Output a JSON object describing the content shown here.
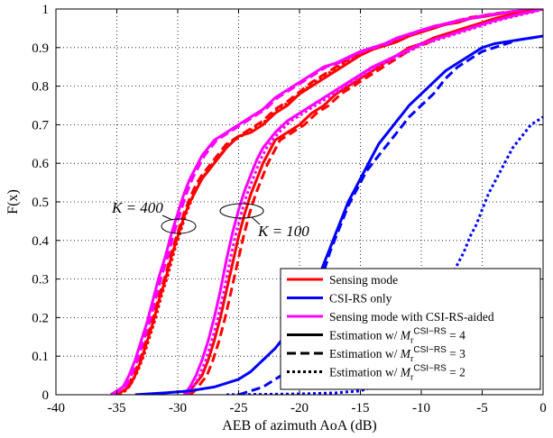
{
  "chart_data": {
    "type": "line",
    "title": "",
    "xlabel": "AEB of  azimuth AoA (dB)",
    "ylabel": "F(x)",
    "xlim": [
      -40,
      0
    ],
    "ylim": [
      0,
      1
    ],
    "grid": true,
    "legend_position": "bottom-right",
    "x_ticks": [
      "-40",
      "-35",
      "-30",
      "-25",
      "-20",
      "-15",
      "-10",
      "-5",
      "0"
    ],
    "y_ticks": [
      "0",
      "0.1",
      "0.2",
      "0.3",
      "0.4",
      "0.5",
      "0.6",
      "0.7",
      "0.8",
      "0.9",
      "1"
    ],
    "legend": [
      {
        "label": "Sensing mode",
        "color": "#ff0000",
        "style": "solid"
      },
      {
        "label": "CSI-RS only",
        "color": "#0000ff",
        "style": "solid"
      },
      {
        "label": "Sensing mode with CSI-RS-aided",
        "color": "#ff00ff",
        "style": "solid"
      },
      {
        "label": "Estimation w/ ",
        "math": "M_r^{CSI-RS} = 4",
        "sup": "CSI−RS",
        "rhs": " = 4",
        "color": "#000000",
        "style": "solid"
      },
      {
        "label": "Estimation w/ ",
        "math": "M_r^{CSI-RS} = 3",
        "sup": "CSI−RS",
        "rhs": " = 3",
        "color": "#000000",
        "style": "dashed"
      },
      {
        "label": "Estimation w/ ",
        "math": "M_r^{CSI-RS} = 2",
        "sup": "CSI−RS",
        "rhs": " = 2",
        "color": "#000000",
        "style": "dotted"
      }
    ],
    "annotations": [
      {
        "text": "K = 400",
        "near_x": -29.5,
        "near_y": 0.44
      },
      {
        "text": "K = 100",
        "near_x": -24,
        "near_y": 0.48
      }
    ],
    "series": [
      {
        "name": "Sensing mode, K=400, M=4",
        "color": "#ff0000",
        "style": "solid",
        "x": [
          -35.2,
          -34.5,
          -34,
          -33.5,
          -33,
          -32.5,
          -32,
          -31.5,
          -31,
          -30.5,
          -30,
          -29.5,
          -29,
          -28.5,
          -28,
          -27.5,
          -27,
          -26,
          -25,
          -24,
          -23,
          -22,
          -21,
          -20,
          -19,
          -18,
          -17,
          -16,
          -15,
          -14,
          -13,
          -12,
          -11,
          -10,
          -9,
          -8,
          -7,
          -6,
          -5,
          -4,
          -3,
          -2,
          -1,
          0
        ],
        "y": [
          0,
          0.01,
          0.02,
          0.05,
          0.09,
          0.14,
          0.19,
          0.25,
          0.3,
          0.36,
          0.41,
          0.46,
          0.5,
          0.53,
          0.56,
          0.58,
          0.6,
          0.64,
          0.67,
          0.68,
          0.7,
          0.73,
          0.75,
          0.78,
          0.8,
          0.82,
          0.84,
          0.86,
          0.88,
          0.895,
          0.905,
          0.915,
          0.93,
          0.94,
          0.95,
          0.96,
          0.965,
          0.975,
          0.98,
          0.985,
          0.99,
          0.993,
          0.997,
          1.0
        ]
      },
      {
        "name": "Sensing mode, K=400, M=3",
        "color": "#ff0000",
        "style": "dashed",
        "x": [
          -35,
          -34.5,
          -34,
          -33.5,
          -33,
          -32.5,
          -32,
          -31.5,
          -31,
          -30.5,
          -30,
          -29.5,
          -29,
          -28.5,
          -28,
          -27.5,
          -27,
          -26,
          -25,
          -24,
          -23,
          -22,
          -21,
          -20,
          -19,
          -18,
          -17,
          -16,
          -15,
          -14,
          -13,
          -12,
          -11,
          -10,
          -9,
          -8,
          -7,
          -6,
          -5,
          -4,
          -3,
          -2,
          -1,
          0
        ],
        "y": [
          0,
          0.01,
          0.03,
          0.06,
          0.1,
          0.15,
          0.2,
          0.26,
          0.31,
          0.37,
          0.42,
          0.47,
          0.51,
          0.545,
          0.57,
          0.59,
          0.61,
          0.65,
          0.67,
          0.69,
          0.71,
          0.74,
          0.76,
          0.785,
          0.81,
          0.83,
          0.85,
          0.87,
          0.885,
          0.9,
          0.91,
          0.92,
          0.935,
          0.945,
          0.955,
          0.962,
          0.97,
          0.978,
          0.983,
          0.988,
          0.992,
          0.995,
          0.998,
          1.0
        ]
      },
      {
        "name": "Sensing mode, K=400, M=2",
        "color": "#ff0000",
        "style": "dotted",
        "x": [
          -34.8,
          -34.3,
          -33.8,
          -33.3,
          -32.8,
          -32.3,
          -31.8,
          -31.3,
          -30.8,
          -30.3,
          -29.8,
          -29.3,
          -28.8,
          -28.3,
          -27.8,
          -27.3,
          -26.8,
          -25.8,
          -24.8,
          -23.8,
          -22.8,
          -21.8,
          -20.8,
          -19.8,
          -18.8,
          -17.8,
          -16.8,
          -15.8,
          -14.8,
          -13.8,
          -12.8,
          -11.8,
          -10.8,
          -9.8,
          -8.8,
          -7.8,
          -6.8,
          -5.8,
          -4.8,
          -3.8,
          -2.8,
          -1.8,
          -0.8,
          0
        ],
        "y": [
          0,
          0.01,
          0.03,
          0.06,
          0.1,
          0.15,
          0.2,
          0.26,
          0.31,
          0.37,
          0.42,
          0.47,
          0.51,
          0.545,
          0.57,
          0.59,
          0.61,
          0.65,
          0.67,
          0.69,
          0.71,
          0.74,
          0.76,
          0.785,
          0.81,
          0.83,
          0.85,
          0.87,
          0.885,
          0.9,
          0.91,
          0.92,
          0.935,
          0.945,
          0.955,
          0.962,
          0.97,
          0.978,
          0.983,
          0.988,
          0.992,
          0.995,
          0.998,
          1.0
        ]
      },
      {
        "name": "Sensing with CSI-RS-aided, K=400, M=4",
        "color": "#ff00ff",
        "style": "solid",
        "x": [
          -35.5,
          -35,
          -34.5,
          -34,
          -33.5,
          -33,
          -32.5,
          -32,
          -31.5,
          -31,
          -30.5,
          -30,
          -29.5,
          -29,
          -28.5,
          -28,
          -27.5,
          -27,
          -26,
          -25,
          -24,
          -23,
          -22,
          -21,
          -20,
          -19,
          -18,
          -17,
          -16,
          -15,
          -14,
          -13,
          -12,
          -11,
          -10,
          -9,
          -8,
          -7,
          -6,
          -5,
          -4,
          -3,
          -2,
          -1,
          0
        ],
        "y": [
          0,
          0.01,
          0.02,
          0.05,
          0.09,
          0.14,
          0.19,
          0.25,
          0.31,
          0.36,
          0.42,
          0.47,
          0.52,
          0.56,
          0.59,
          0.62,
          0.64,
          0.66,
          0.68,
          0.7,
          0.72,
          0.74,
          0.77,
          0.79,
          0.81,
          0.83,
          0.85,
          0.86,
          0.875,
          0.89,
          0.9,
          0.91,
          0.925,
          0.935,
          0.945,
          0.955,
          0.962,
          0.97,
          0.976,
          0.982,
          0.987,
          0.991,
          0.995,
          0.998,
          1.0
        ]
      },
      {
        "name": "Sensing with CSI-RS-aided, K=400, M=3",
        "color": "#ff00ff",
        "style": "dashed",
        "x": [
          -35.3,
          -34.8,
          -34.3,
          -33.8,
          -33.3,
          -32.8,
          -32.3,
          -31.8,
          -31.3,
          -30.8,
          -30.3,
          -29.8,
          -29.3,
          -28.8,
          -28.3,
          -27.8,
          -27.3,
          -26.8,
          -25.8,
          -24.8,
          -23.8,
          -22.8,
          -21.8,
          -20.8,
          -19.8,
          -18.8,
          -17.8,
          -16.8,
          -15.8,
          -14.8,
          -13.8,
          -12.8,
          -11.8,
          -10.8,
          -9.8,
          -8.8,
          -7.8,
          -6.8,
          -5.8,
          -4.8,
          -3.8,
          -2.8,
          -1.8,
          -0.8,
          0
        ],
        "y": [
          0,
          0.01,
          0.02,
          0.05,
          0.09,
          0.14,
          0.19,
          0.25,
          0.31,
          0.36,
          0.42,
          0.47,
          0.52,
          0.56,
          0.59,
          0.62,
          0.64,
          0.66,
          0.68,
          0.7,
          0.72,
          0.74,
          0.77,
          0.79,
          0.81,
          0.83,
          0.85,
          0.86,
          0.875,
          0.89,
          0.9,
          0.91,
          0.925,
          0.935,
          0.945,
          0.955,
          0.962,
          0.97,
          0.976,
          0.982,
          0.987,
          0.991,
          0.995,
          0.998,
          1.0
        ]
      },
      {
        "name": "Sensing mode, K=100, M=4",
        "color": "#ff0000",
        "style": "solid",
        "x": [
          -29.3,
          -29,
          -28.5,
          -28,
          -27.5,
          -27,
          -26.5,
          -26,
          -25.5,
          -25,
          -24.5,
          -24,
          -23.5,
          -23,
          -22.5,
          -22,
          -21,
          -20,
          -19,
          -18,
          -17,
          -16,
          -15,
          -14,
          -13,
          -12,
          -11,
          -10,
          -9,
          -8,
          -7,
          -6,
          -5,
          -4,
          -3,
          -2,
          -1,
          0
        ],
        "y": [
          0,
          0.01,
          0.03,
          0.05,
          0.09,
          0.14,
          0.2,
          0.27,
          0.34,
          0.41,
          0.47,
          0.52,
          0.56,
          0.6,
          0.63,
          0.66,
          0.68,
          0.7,
          0.73,
          0.75,
          0.78,
          0.8,
          0.82,
          0.84,
          0.86,
          0.88,
          0.9,
          0.91,
          0.925,
          0.935,
          0.945,
          0.955,
          0.965,
          0.975,
          0.983,
          0.99,
          0.995,
          1.0
        ]
      },
      {
        "name": "Sensing mode, K=100, M=3",
        "color": "#ff0000",
        "style": "dashed",
        "x": [
          -29,
          -28.6,
          -28.1,
          -27.6,
          -27.1,
          -26.6,
          -26.1,
          -25.6,
          -25.1,
          -24.6,
          -24.1,
          -23.6,
          -23.1,
          -22.6,
          -22.1,
          -21.6,
          -20.6,
          -19.6,
          -18.6,
          -17.6,
          -16.6,
          -15.6,
          -14.6,
          -13.6,
          -12.6,
          -11.6,
          -10.6,
          -9.6,
          -8.6,
          -7.6,
          -6.6,
          -5.6,
          -4.6,
          -3.6,
          -2.6,
          -1.6,
          -0.6,
          0
        ],
        "y": [
          0,
          0.01,
          0.03,
          0.05,
          0.09,
          0.14,
          0.2,
          0.27,
          0.34,
          0.41,
          0.47,
          0.52,
          0.56,
          0.6,
          0.63,
          0.66,
          0.68,
          0.7,
          0.73,
          0.75,
          0.78,
          0.8,
          0.82,
          0.84,
          0.86,
          0.88,
          0.9,
          0.91,
          0.925,
          0.935,
          0.945,
          0.955,
          0.965,
          0.975,
          0.983,
          0.99,
          0.995,
          1.0
        ]
      },
      {
        "name": "Sensing with CSI-RS-aided, K=100, M=4",
        "color": "#ff00ff",
        "style": "solid",
        "x": [
          -29.5,
          -29,
          -28.5,
          -28,
          -27.5,
          -27,
          -26.5,
          -26,
          -25.5,
          -25,
          -24.5,
          -24,
          -23.5,
          -23,
          -22.5,
          -22,
          -21,
          -20,
          -19,
          -18,
          -17,
          -16,
          -15,
          -14,
          -13,
          -12,
          -11,
          -10,
          -9,
          -8,
          -7,
          -6,
          -5,
          -4,
          -3,
          -2,
          -1,
          0
        ],
        "y": [
          0,
          0.02,
          0.05,
          0.09,
          0.14,
          0.2,
          0.27,
          0.35,
          0.42,
          0.48,
          0.53,
          0.57,
          0.61,
          0.64,
          0.66,
          0.68,
          0.71,
          0.73,
          0.75,
          0.77,
          0.79,
          0.81,
          0.83,
          0.85,
          0.865,
          0.88,
          0.895,
          0.91,
          0.92,
          0.93,
          0.94,
          0.95,
          0.96,
          0.97,
          0.978,
          0.986,
          0.993,
          1.0
        ]
      },
      {
        "name": "Sensing with CSI-RS-aided, K=100, M=2",
        "color": "#ff00ff",
        "style": "dotted",
        "x": [
          -29.2,
          -28.7,
          -28.2,
          -27.7,
          -27.2,
          -26.7,
          -26.2,
          -25.7,
          -25.2,
          -24.7,
          -24.2,
          -23.7,
          -23.2,
          -22.7,
          -22.2,
          -21.7,
          -20.7,
          -19.7,
          -18.7,
          -17.7,
          -16.7,
          -15.7,
          -14.7,
          -13.7,
          -12.7,
          -11.7,
          -10.7,
          -9.7,
          -8.7,
          -7.7,
          -6.7,
          -5.7,
          -4.7,
          -3.7,
          -2.7,
          -1.7,
          -0.7,
          0
        ],
        "y": [
          0,
          0.02,
          0.05,
          0.09,
          0.14,
          0.2,
          0.27,
          0.35,
          0.42,
          0.48,
          0.53,
          0.57,
          0.61,
          0.64,
          0.66,
          0.68,
          0.71,
          0.73,
          0.75,
          0.77,
          0.79,
          0.81,
          0.83,
          0.85,
          0.865,
          0.88,
          0.895,
          0.91,
          0.92,
          0.93,
          0.94,
          0.95,
          0.96,
          0.97,
          0.978,
          0.986,
          0.993,
          1.0
        ]
      },
      {
        "name": "CSI-RS only, M=4",
        "color": "#0000ff",
        "style": "solid",
        "x": [
          -33.5,
          -31,
          -29,
          -27,
          -25,
          -24,
          -23,
          -22,
          -21,
          -20,
          -19,
          -18.5,
          -18,
          -17.5,
          -17,
          -16.5,
          -16,
          -15.5,
          -15,
          -14.5,
          -14,
          -13.5,
          -13,
          -12.5,
          -12,
          -11.5,
          -11,
          -10,
          -9,
          -8,
          -7,
          -6,
          -5,
          -4,
          -3,
          -2,
          -1,
          0
        ],
        "y": [
          0,
          0.005,
          0.01,
          0.02,
          0.04,
          0.06,
          0.09,
          0.12,
          0.16,
          0.2,
          0.26,
          0.3,
          0.34,
          0.38,
          0.42,
          0.46,
          0.5,
          0.53,
          0.56,
          0.59,
          0.62,
          0.65,
          0.67,
          0.69,
          0.71,
          0.73,
          0.75,
          0.78,
          0.81,
          0.84,
          0.86,
          0.88,
          0.9,
          0.91,
          0.915,
          0.92,
          0.925,
          0.93
        ]
      },
      {
        "name": "CSI-RS only, M=3",
        "color": "#0000ff",
        "style": "dashed",
        "x": [
          -25,
          -23,
          -21.5,
          -20.5,
          -20,
          -19.5,
          -19,
          -18.5,
          -18,
          -17.5,
          -17,
          -16.5,
          -16,
          -15.5,
          -15,
          -14.5,
          -14,
          -13.5,
          -13,
          -12.5,
          -12,
          -11.5,
          -11,
          -10,
          -9,
          -8,
          -7,
          -6,
          -5,
          -4,
          -3,
          -2,
          -1,
          0
        ],
        "y": [
          0,
          0.02,
          0.05,
          0.09,
          0.13,
          0.18,
          0.23,
          0.28,
          0.32,
          0.37,
          0.41,
          0.45,
          0.49,
          0.52,
          0.55,
          0.58,
          0.6,
          0.62,
          0.64,
          0.66,
          0.68,
          0.7,
          0.72,
          0.75,
          0.78,
          0.82,
          0.85,
          0.87,
          0.89,
          0.9,
          0.91,
          0.92,
          0.925,
          0.93
        ]
      },
      {
        "name": "CSI-RS only, M=2",
        "color": "#0000ff",
        "style": "dotted",
        "x": [
          -26,
          -20,
          -17,
          -15,
          -14,
          -13,
          -12,
          -11.5,
          -11,
          -10.5,
          -10,
          -9.5,
          -9,
          -8.5,
          -8,
          -7.5,
          -7,
          -6.5,
          -6,
          -5.5,
          -5,
          -4.5,
          -4,
          -3.5,
          -3,
          -2.5,
          -2,
          -1.5,
          -1,
          -0.5,
          0
        ],
        "y": [
          0,
          0.002,
          0.005,
          0.01,
          0.02,
          0.035,
          0.06,
          0.08,
          0.1,
          0.13,
          0.16,
          0.19,
          0.22,
          0.25,
          0.28,
          0.31,
          0.34,
          0.37,
          0.41,
          0.44,
          0.48,
          0.52,
          0.55,
          0.58,
          0.61,
          0.64,
          0.66,
          0.68,
          0.7,
          0.71,
          0.72
        ]
      }
    ]
  }
}
